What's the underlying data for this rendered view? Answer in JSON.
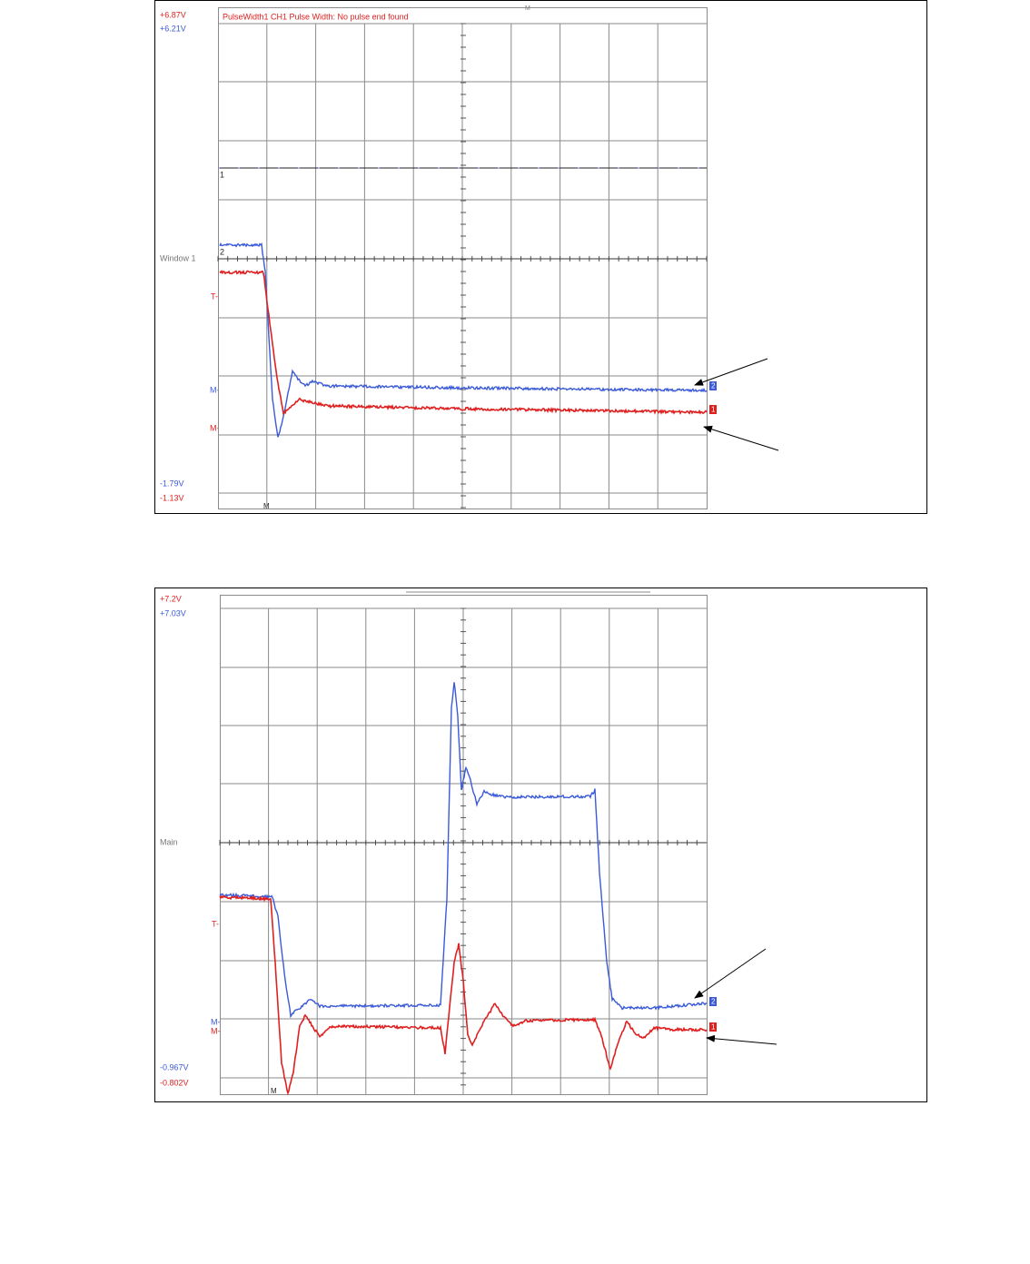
{
  "panels": [
    {
      "top_left_red": "+6.87V",
      "top_left_blue": "+6.21V",
      "window_label": "Window 1",
      "bottom_left_blue": "-1.79V",
      "bottom_left_red": "-1.13V",
      "measurement": "PulseWidth1 CH1 Pulse Width: No pulse end found",
      "ch1_marker": "1",
      "ch2_marker": "2",
      "trigger_marker": "T-",
      "ch2_m_marker": "M-",
      "ch1_m_marker": "M-",
      "time_marker": "M",
      "top_marker": "M",
      "ch2_end_tag": "2",
      "ch1_end_tag": "1"
    },
    {
      "top_left_red": "+7.2V",
      "top_left_blue": "+7.03V",
      "window_label": "Main",
      "bottom_left_blue": "-0.967V",
      "bottom_left_red": "-0.802V",
      "trigger_marker": "T-",
      "ch2_m_marker": "M-",
      "ch1_m_marker": "M-",
      "time_marker": "M",
      "ch2_end_tag": "2",
      "ch1_end_tag": "1"
    }
  ]
}
